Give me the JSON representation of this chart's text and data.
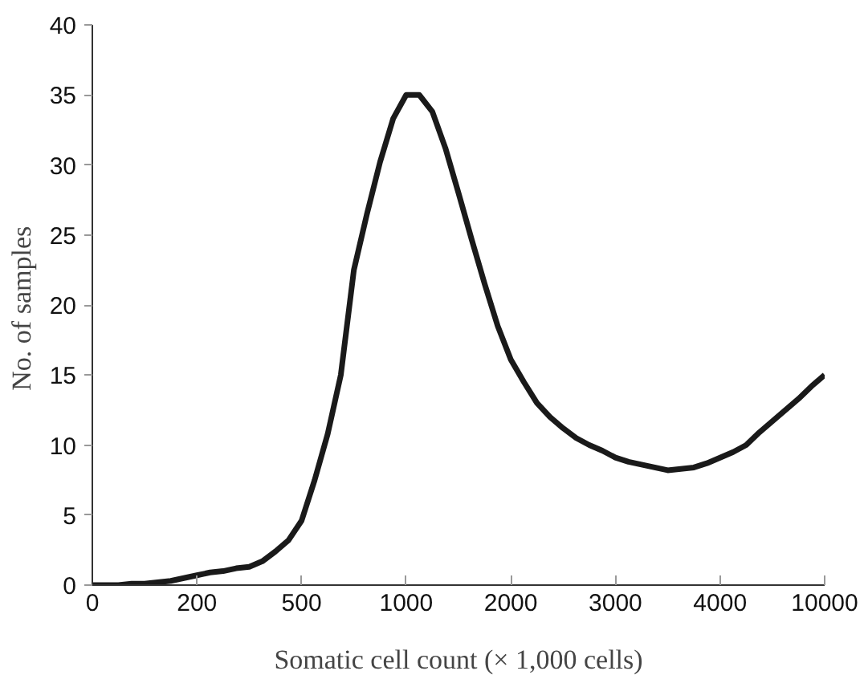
{
  "chart_data": {
    "type": "line",
    "xlabel": "Somatic cell count (× 1,000 cells)",
    "ylabel": "No. of  samples",
    "categories": [
      "0",
      null,
      null,
      null,
      null,
      null,
      null,
      null,
      "200",
      null,
      null,
      null,
      null,
      null,
      null,
      null,
      "500",
      null,
      null,
      null,
      null,
      null,
      null,
      null,
      "1000",
      null,
      null,
      null,
      null,
      null,
      null,
      null,
      "2000",
      null,
      null,
      null,
      null,
      null,
      null,
      null,
      "3000",
      null,
      null,
      null,
      null,
      null,
      null,
      null,
      "4000",
      null,
      null,
      null,
      null,
      null,
      null,
      null,
      "10000"
    ],
    "series": [
      {
        "color": "#1a1a1a",
        "values": [
          0,
          0,
          0,
          0.1,
          0.1,
          0.2,
          0.3,
          0.5,
          0.7,
          0.9,
          1.0,
          1.2,
          1.3,
          1.7,
          2.4,
          3.2,
          4.6,
          7.5,
          10.8,
          15.0,
          22.5,
          26.5,
          30.2,
          33.3,
          35.0,
          35.0,
          33.8,
          31.2,
          28.0,
          24.7,
          21.5,
          18.5,
          16.1,
          14.5,
          13.0,
          12.0,
          11.2,
          10.5,
          10.0,
          9.6,
          9.1,
          8.8,
          8.6,
          8.4,
          8.2,
          8.3,
          8.4,
          8.7,
          9.1,
          9.5,
          10.0,
          10.9,
          11.7,
          12.5,
          13.3,
          14.2,
          15.0
        ]
      }
    ],
    "ylim": [
      0,
      40
    ],
    "yticks": [
      0,
      5,
      10,
      15,
      20,
      25,
      30,
      35,
      40
    ],
    "grid": false,
    "line_style": "solid",
    "marker": "none"
  }
}
